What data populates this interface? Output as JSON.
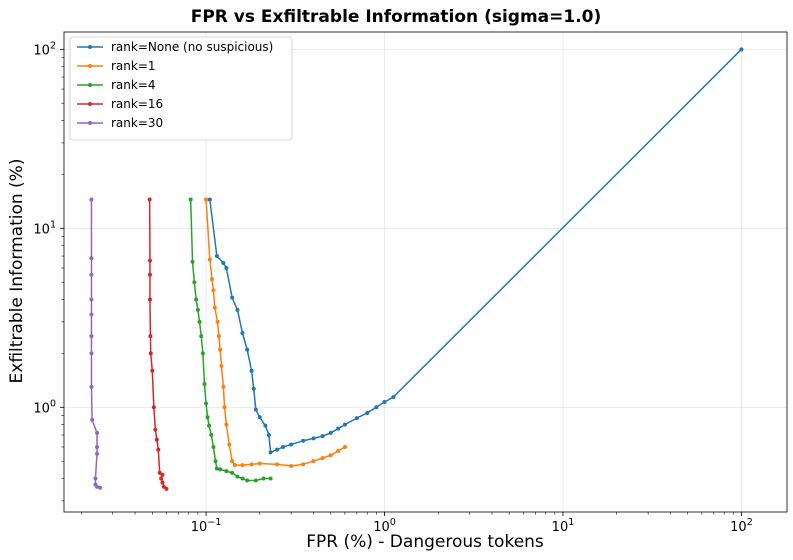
{
  "chart_data": {
    "type": "line",
    "title": "FPR vs Exfiltrable Information (sigma=1.0)",
    "xlabel": "FPR (%) - Dangerous tokens",
    "ylabel": "Exfiltrable Information (%)",
    "xscale": "log",
    "yscale": "log",
    "xlim": [
      0.016,
      180
    ],
    "ylim": [
      0.26,
      125
    ],
    "x_ticks": [
      {
        "value": 0.1,
        "base": "10",
        "exp": "−1"
      },
      {
        "value": 1,
        "base": "10",
        "exp": "0"
      },
      {
        "value": 10,
        "base": "10",
        "exp": "1"
      },
      {
        "value": 100,
        "base": "10",
        "exp": "2"
      }
    ],
    "y_ticks": [
      {
        "value": 1,
        "base": "10",
        "exp": "0"
      },
      {
        "value": 10,
        "base": "10",
        "exp": "1"
      },
      {
        "value": 100,
        "base": "10",
        "exp": "2"
      }
    ],
    "grid": true,
    "legend_position": "top-left",
    "series": [
      {
        "name": "rank=None (no suspicious)",
        "color": "#1f77b4",
        "points": [
          [
            100,
            100
          ],
          [
            1.12,
            1.14
          ],
          [
            1.0,
            1.07
          ],
          [
            0.9,
            1.0
          ],
          [
            0.8,
            0.93
          ],
          [
            0.7,
            0.87
          ],
          [
            0.6,
            0.8
          ],
          [
            0.55,
            0.76
          ],
          [
            0.5,
            0.72
          ],
          [
            0.45,
            0.69
          ],
          [
            0.4,
            0.67
          ],
          [
            0.35,
            0.65
          ],
          [
            0.3,
            0.62
          ],
          [
            0.27,
            0.6
          ],
          [
            0.25,
            0.58
          ],
          [
            0.23,
            0.56
          ],
          [
            0.225,
            0.7
          ],
          [
            0.215,
            0.79
          ],
          [
            0.2,
            0.88
          ],
          [
            0.19,
            0.97
          ],
          [
            0.185,
            1.27
          ],
          [
            0.18,
            1.6
          ],
          [
            0.17,
            2.1
          ],
          [
            0.16,
            2.6
          ],
          [
            0.15,
            3.5
          ],
          [
            0.14,
            4.1
          ],
          [
            0.13,
            6.0
          ],
          [
            0.125,
            6.4
          ],
          [
            0.115,
            7.0
          ],
          [
            0.105,
            14.5
          ]
        ]
      },
      {
        "name": "rank=1",
        "color": "#ff7f0e",
        "points": [
          [
            0.6,
            0.6
          ],
          [
            0.55,
            0.57
          ],
          [
            0.5,
            0.54
          ],
          [
            0.45,
            0.52
          ],
          [
            0.4,
            0.5
          ],
          [
            0.35,
            0.48
          ],
          [
            0.3,
            0.47
          ],
          [
            0.25,
            0.48
          ],
          [
            0.2,
            0.485
          ],
          [
            0.18,
            0.48
          ],
          [
            0.16,
            0.475
          ],
          [
            0.145,
            0.475
          ],
          [
            0.14,
            0.5
          ],
          [
            0.135,
            0.62
          ],
          [
            0.13,
            0.8
          ],
          [
            0.127,
            1.0
          ],
          [
            0.125,
            1.3
          ],
          [
            0.122,
            1.7
          ],
          [
            0.12,
            2.1
          ],
          [
            0.118,
            2.5
          ],
          [
            0.116,
            3.0
          ],
          [
            0.112,
            3.6
          ],
          [
            0.11,
            4.5
          ],
          [
            0.108,
            5.2
          ],
          [
            0.105,
            6.7
          ],
          [
            0.1,
            14.5
          ]
        ]
      },
      {
        "name": "rank=4",
        "color": "#2ca02c",
        "points": [
          [
            0.23,
            0.4
          ],
          [
            0.21,
            0.4
          ],
          [
            0.19,
            0.39
          ],
          [
            0.17,
            0.39
          ],
          [
            0.16,
            0.4
          ],
          [
            0.15,
            0.41
          ],
          [
            0.14,
            0.43
          ],
          [
            0.13,
            0.44
          ],
          [
            0.12,
            0.45
          ],
          [
            0.115,
            0.455
          ],
          [
            0.113,
            0.5
          ],
          [
            0.11,
            0.6
          ],
          [
            0.107,
            0.7
          ],
          [
            0.104,
            0.79
          ],
          [
            0.102,
            0.88
          ],
          [
            0.1,
            1.05
          ],
          [
            0.098,
            1.35
          ],
          [
            0.096,
            2.0
          ],
          [
            0.094,
            2.5
          ],
          [
            0.092,
            3.0
          ],
          [
            0.09,
            3.5
          ],
          [
            0.088,
            4.0
          ],
          [
            0.086,
            5.0
          ],
          [
            0.084,
            6.5
          ],
          [
            0.082,
            14.5
          ]
        ]
      },
      {
        "name": "rank=16",
        "color": "#d62728",
        "points": [
          [
            0.06,
            0.35
          ],
          [
            0.058,
            0.36
          ],
          [
            0.057,
            0.38
          ],
          [
            0.056,
            0.4
          ],
          [
            0.057,
            0.42
          ],
          [
            0.055,
            0.43
          ],
          [
            0.054,
            0.58
          ],
          [
            0.053,
            0.66
          ],
          [
            0.052,
            0.75
          ],
          [
            0.051,
            1.0
          ],
          [
            0.05,
            1.6
          ],
          [
            0.049,
            2.0
          ],
          [
            0.0488,
            2.5
          ],
          [
            0.0485,
            4.0
          ],
          [
            0.0485,
            5.5
          ],
          [
            0.0485,
            6.6
          ],
          [
            0.0483,
            14.5
          ]
        ]
      },
      {
        "name": "rank=30",
        "color": "#9467bd",
        "points": [
          [
            0.0255,
            0.355
          ],
          [
            0.0245,
            0.36
          ],
          [
            0.024,
            0.37
          ],
          [
            0.024,
            0.4
          ],
          [
            0.0245,
            0.55
          ],
          [
            0.0245,
            0.6
          ],
          [
            0.0245,
            0.72
          ],
          [
            0.023,
            0.85
          ],
          [
            0.0228,
            1.3
          ],
          [
            0.0228,
            2.0
          ],
          [
            0.0228,
            2.5
          ],
          [
            0.0228,
            3.3
          ],
          [
            0.0228,
            4.0
          ],
          [
            0.0228,
            5.5
          ],
          [
            0.0228,
            6.8
          ],
          [
            0.0228,
            14.5
          ]
        ]
      }
    ]
  }
}
